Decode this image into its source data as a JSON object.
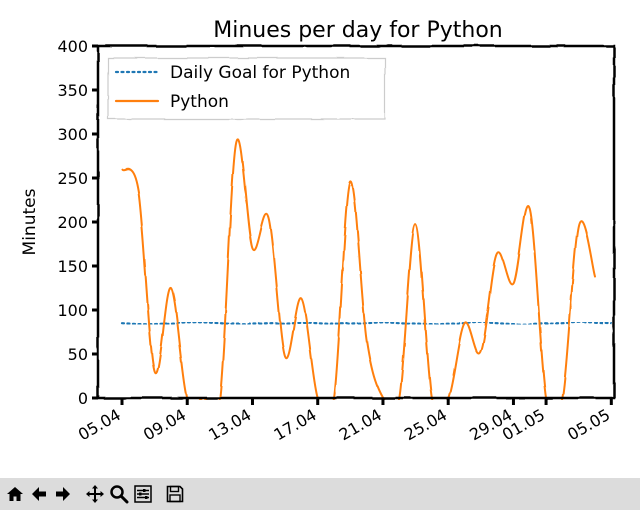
{
  "chart_data": {
    "type": "line",
    "title": "Minues per day for Python",
    "xlabel": "",
    "ylabel": "Minutes",
    "ylim": [
      0,
      400
    ],
    "yticks": [
      0,
      50,
      100,
      150,
      200,
      250,
      300,
      350,
      400
    ],
    "xticks": [
      "05.04",
      "09.04",
      "13.04",
      "17.04",
      "21.04",
      "25.04",
      "29.04",
      "01.05",
      "05.05"
    ],
    "xtick_day_index": [
      0,
      4,
      8,
      12,
      16,
      20,
      24,
      26,
      30
    ],
    "legend_position": "top-left",
    "grid": false,
    "style": "xkcd",
    "series": [
      {
        "name": "Daily Goal for Python",
        "style": "dotted",
        "color": "#1f77b4",
        "values": [
          85,
          84,
          84,
          85,
          86,
          86,
          85,
          84,
          84,
          85,
          85,
          86,
          85,
          84,
          84,
          85,
          86,
          85,
          84,
          84,
          85,
          85,
          86,
          85,
          84,
          84,
          85,
          85,
          86,
          86,
          85
        ]
      },
      {
        "name": "Python",
        "style": "solid",
        "color": "#ff7f0e",
        "values": [
          260,
          235,
          30,
          125,
          0,
          0,
          0,
          290,
          170,
          205,
          47,
          113,
          0,
          0,
          245,
          65,
          0,
          0,
          197,
          0,
          0,
          85,
          52,
          163,
          130,
          215,
          0,
          0,
          197,
          138
        ]
      }
    ]
  },
  "toolbar": {
    "buttons": [
      "home-icon",
      "back-icon",
      "forward-icon",
      "pan-icon",
      "zoom-icon",
      "configure-icon",
      "save-icon"
    ]
  }
}
